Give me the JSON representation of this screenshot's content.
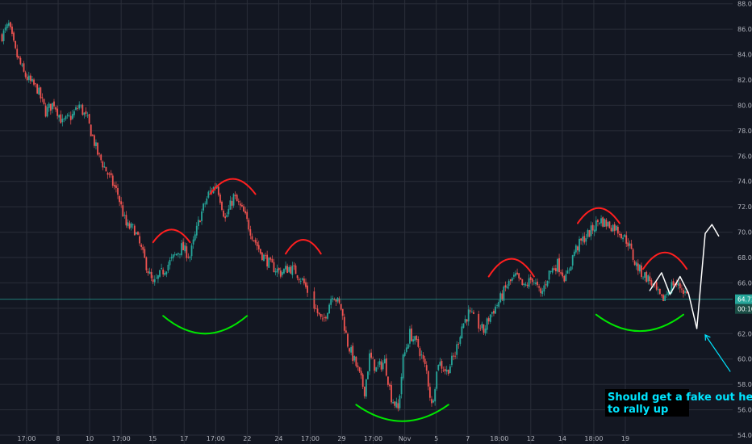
{
  "chart_data": {
    "type": "candlestick",
    "x_ticks": [
      "17:00",
      "8",
      "10",
      "17:00",
      "15",
      "17",
      "17:00",
      "22",
      "24",
      "17:00",
      "29",
      "17:00",
      "Nov",
      "5",
      "7",
      "18:00",
      "12",
      "14",
      "18:00",
      "19"
    ],
    "y_ticks": [
      54.0,
      56.0,
      58.0,
      60.0,
      62.0,
      64.0,
      66.0,
      68.0,
      70.0,
      72.0,
      74.0,
      76.0,
      78.0,
      80.0,
      82.0,
      84.0,
      86.0,
      88.0
    ],
    "ylim": [
      53.3,
      88.3
    ],
    "grid": true,
    "price_path": [
      [
        0,
        85.5
      ],
      [
        0.4,
        86.3
      ],
      [
        0.8,
        84.2
      ],
      [
        1.3,
        82.5
      ],
      [
        1.7,
        81.8
      ],
      [
        2.1,
        81.3
      ],
      [
        2.6,
        79.5
      ],
      [
        3.1,
        80.2
      ],
      [
        3.6,
        78.6
      ],
      [
        4.2,
        79.2
      ],
      [
        4.6,
        80.0
      ],
      [
        5.1,
        78.8
      ],
      [
        5.7,
        76.2
      ],
      [
        6.3,
        74.6
      ],
      [
        6.9,
        73.0
      ],
      [
        7.4,
        70.5
      ],
      [
        7.9,
        70.2
      ],
      [
        8.5,
        67.8
      ],
      [
        9.0,
        65.8
      ],
      [
        9.4,
        66.6
      ],
      [
        10.1,
        67.8
      ],
      [
        10.7,
        68.8
      ],
      [
        11.2,
        68.1
      ],
      [
        11.8,
        71.2
      ],
      [
        12.3,
        73.0
      ],
      [
        12.8,
        73.8
      ],
      [
        13.3,
        71.0
      ],
      [
        13.8,
        72.8
      ],
      [
        14.4,
        71.5
      ],
      [
        14.9,
        69.8
      ],
      [
        15.4,
        68.4
      ],
      [
        16.0,
        67.4
      ],
      [
        16.6,
        66.8
      ],
      [
        17.1,
        67.2
      ],
      [
        17.5,
        66.9
      ],
      [
        17.9,
        66.2
      ],
      [
        18.6,
        64.2
      ],
      [
        19.1,
        62.8
      ],
      [
        19.7,
        65.2
      ],
      [
        20.2,
        64.0
      ],
      [
        20.6,
        61.2
      ],
      [
        21.1,
        59.5
      ],
      [
        21.6,
        57.5
      ],
      [
        21.9,
        60.2
      ],
      [
        22.3,
        59.2
      ],
      [
        22.8,
        59.8
      ],
      [
        23.2,
        57.0
      ],
      [
        23.6,
        56.0
      ],
      [
        23.9,
        60.0
      ],
      [
        24.3,
        62.0
      ],
      [
        24.8,
        61.0
      ],
      [
        25.3,
        59.0
      ],
      [
        25.6,
        56.3
      ],
      [
        26.0,
        59.8
      ],
      [
        26.5,
        59.0
      ],
      [
        27.0,
        60.4
      ],
      [
        27.4,
        62.6
      ],
      [
        27.8,
        63.6
      ],
      [
        28.3,
        62.8
      ],
      [
        28.7,
        62.2
      ],
      [
        29.1,
        63.5
      ],
      [
        29.6,
        64.5
      ],
      [
        30.1,
        65.8
      ],
      [
        30.6,
        66.5
      ],
      [
        31.1,
        65.6
      ],
      [
        31.6,
        66.4
      ],
      [
        32.1,
        65.0
      ],
      [
        32.6,
        66.8
      ],
      [
        33.1,
        67.5
      ],
      [
        33.6,
        66.3
      ],
      [
        34.1,
        68.5
      ],
      [
        34.6,
        69.4
      ],
      [
        35.1,
        70.1
      ],
      [
        35.6,
        71.0
      ],
      [
        36.1,
        70.6
      ],
      [
        36.5,
        70.4
      ],
      [
        36.9,
        69.9
      ],
      [
        37.3,
        69.2
      ],
      [
        37.7,
        67.6
      ],
      [
        38.1,
        66.8
      ],
      [
        38.6,
        66.2
      ],
      [
        39.0,
        65.3
      ],
      [
        39.3,
        64.6
      ],
      [
        39.6,
        65.2
      ],
      [
        40.0,
        66.0
      ],
      [
        40.5,
        65.6
      ],
      [
        40.9,
        64.9
      ]
    ],
    "current_price": "64.71",
    "countdown": "00:10",
    "annotations": {
      "text_note": "Should get a fake out here\nto rally up",
      "red_arcs": [
        {
          "x": [
            9.0,
            11.2
          ],
          "y_base": 69.2,
          "y_peak": 70.2
        },
        {
          "x": [
            12.4,
            15.1
          ],
          "y_base": 73.0,
          "y_peak": 74.2
        },
        {
          "x": [
            16.9,
            19.0
          ],
          "y_base": 68.3,
          "y_peak": 69.4
        },
        {
          "x": [
            29.0,
            31.7
          ],
          "y_base": 66.5,
          "y_peak": 67.9
        },
        {
          "x": [
            34.3,
            36.8
          ],
          "y_base": 70.7,
          "y_peak": 71.9
        },
        {
          "x": [
            38.2,
            40.8
          ],
          "y_base": 67.1,
          "y_peak": 68.4
        }
      ],
      "green_arcs": [
        {
          "x": [
            9.6,
            14.6
          ],
          "y_base": 63.4,
          "y_peak": 62.0
        },
        {
          "x": [
            21.1,
            26.6
          ],
          "y_base": 56.4,
          "y_peak": 55.1
        },
        {
          "x": [
            35.4,
            40.6
          ],
          "y_base": 63.5,
          "y_peak": 62.2
        }
      ],
      "white_path": [
        [
          38.6,
          65.4
        ],
        [
          39.3,
          66.8
        ],
        [
          39.8,
          65.1
        ],
        [
          40.4,
          66.5
        ],
        [
          40.9,
          65.2
        ],
        [
          41.4,
          62.4
        ],
        [
          41.9,
          69.9
        ],
        [
          42.3,
          70.6
        ],
        [
          42.7,
          69.7
        ]
      ],
      "cyan_arrow": {
        "from": [
          43.4,
          59.0
        ],
        "to": [
          41.9,
          61.9
        ]
      }
    }
  },
  "colors": {
    "background": "#131722",
    "grid": "#2a2e39",
    "up": "#26a69a",
    "down": "#ef5350",
    "price_line": "#26a69a",
    "red_arc": "#ff1f1f",
    "green_arc": "#00e600",
    "white_path": "#ffffff",
    "annotation_text": "#00e5ff",
    "note_bg": "#000000",
    "countdown_bg": "#1a4d45"
  }
}
